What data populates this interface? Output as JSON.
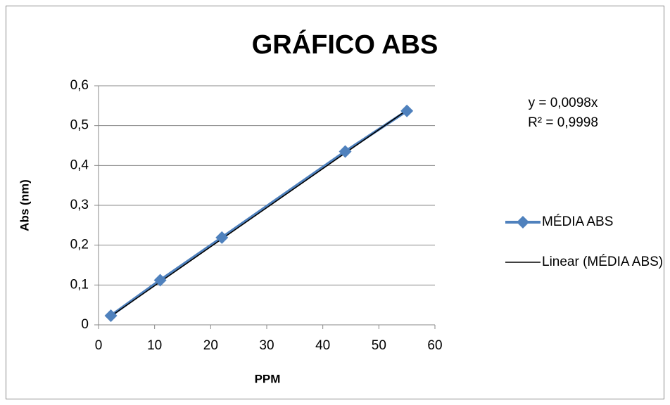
{
  "chart_data": {
    "type": "scatter",
    "title": "GRÁFICO ABS",
    "x_label": "PPM",
    "y_label": "Abs (nm)",
    "annotations": [
      "y = 0,0098x",
      "R² = 0,9998"
    ],
    "series": [
      {
        "name": "MÉDIA ABS",
        "color": "#4f81bd",
        "marker": "diamond",
        "x": [
          2.2,
          11,
          22,
          44,
          55
        ],
        "values": [
          0.023,
          0.112,
          0.219,
          0.435,
          0.537
        ]
      },
      {
        "name": "Linear (MÉDIA ABS)",
        "color": "#000000",
        "x": [
          2.2,
          55
        ],
        "values": [
          0.0216,
          0.539
        ]
      }
    ],
    "xlim": [
      0,
      60
    ],
    "xticks": [
      0,
      10,
      20,
      30,
      40,
      50,
      60
    ],
    "ylim": [
      0,
      0.6
    ],
    "yticks": [
      0,
      {
        "value": 0.1,
        "label": "0,1"
      },
      {
        "value": 0.2,
        "label": "0,2"
      },
      {
        "value": 0.3,
        "label": "0,3"
      },
      {
        "value": 0.4,
        "label": "0,4"
      },
      {
        "value": 0.5,
        "label": "0,5"
      },
      {
        "value": 0.6,
        "label": "0,6"
      }
    ],
    "grid": true,
    "legend": "right"
  }
}
